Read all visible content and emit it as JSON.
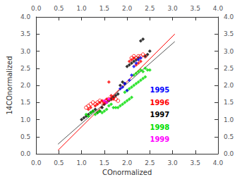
{
  "chart_data": {
    "type": "scatter",
    "x_label": "COnormalized",
    "y_label": "14COnormalized",
    "xlim": [
      0.0,
      4.0
    ],
    "ylim": [
      0.0,
      4.0
    ],
    "xticks": [
      {
        "value": 0.0,
        "label": "0.0"
      },
      0.5,
      {
        "value": 1.0,
        "label": "1.0"
      },
      1.5,
      {
        "value": 2.0,
        "label": "2.0"
      },
      2.5,
      {
        "value": 3.0,
        "label": "3.0"
      },
      3.5,
      {
        "value": 4.0,
        "label": "4.0"
      }
    ],
    "yticks": [
      {
        "value": 0.0,
        "label": "0.0"
      },
      0.5,
      {
        "value": 1.0,
        "label": "1.0"
      },
      1.5,
      {
        "value": 2.0,
        "label": "2.0"
      },
      2.5,
      {
        "value": 3.0,
        "label": "3.0"
      },
      3.5,
      {
        "value": 4.0,
        "label": "4.0"
      }
    ],
    "grid": false,
    "series": [
      {
        "type": "line",
        "color": "#555555",
        "x": [
          0.48,
          3.05
        ],
        "values": [
          0.28,
          3.28
        ]
      },
      {
        "type": "line",
        "color": "#ff0000",
        "x": [
          0.48,
          3.05
        ],
        "values": [
          0.1,
          3.5
        ]
      },
      {
        "type": "scatter",
        "marker": "diamond",
        "color": "#000000",
        "x": [
          1.0,
          1.05,
          1.1,
          1.15,
          1.2,
          1.25,
          1.3,
          1.35,
          1.4,
          1.45,
          1.5,
          1.55,
          1.6,
          1.65,
          1.7,
          1.75,
          1.8,
          1.85,
          1.9,
          1.95,
          2.0,
          2.05,
          2.1,
          2.15,
          2.2,
          2.25,
          2.3,
          2.35,
          2.4,
          2.45,
          2.5
        ],
        "values": [
          1.0,
          1.05,
          1.1,
          1.15,
          1.2,
          1.25,
          1.3,
          1.2,
          1.25,
          1.35,
          1.45,
          1.5,
          1.55,
          1.6,
          1.65,
          1.7,
          1.75,
          2.0,
          2.1,
          2.05,
          2.55,
          2.6,
          2.65,
          2.7,
          2.75,
          2.8,
          3.3,
          3.35,
          2.85,
          2.9,
          3.0
        ]
      },
      {
        "type": "scatter",
        "marker": "diamond",
        "color": "#00dd00",
        "x": [
          1.1,
          1.15,
          1.2,
          1.25,
          1.3,
          1.35,
          1.4,
          1.45,
          1.5,
          1.55,
          1.6,
          1.65,
          1.7,
          1.75,
          1.8,
          1.85,
          1.9,
          1.95,
          2.0,
          2.05,
          2.1,
          2.15,
          2.2,
          2.25,
          2.3,
          2.35,
          2.4,
          2.45,
          2.5,
          1.95,
          2.0,
          2.05,
          2.1,
          2.15,
          2.2,
          2.25,
          2.3,
          2.35,
          2.4
        ],
        "values": [
          1.15,
          1.1,
          1.2,
          1.25,
          1.15,
          1.2,
          1.25,
          1.2,
          1.25,
          1.3,
          1.4,
          1.45,
          1.35,
          1.35,
          1.35,
          1.4,
          1.45,
          1.5,
          1.55,
          1.6,
          1.65,
          2.3,
          2.35,
          2.4,
          2.45,
          2.4,
          2.5,
          2.45,
          2.45,
          1.8,
          1.85,
          1.9,
          1.95,
          2.0,
          2.05,
          2.1,
          2.15,
          2.2,
          2.25
        ]
      },
      {
        "type": "scatter",
        "marker": "open_circle",
        "color": "#ff0000",
        "x": [
          1.1,
          1.15,
          1.2,
          1.25,
          1.3,
          1.35,
          1.4,
          1.45,
          1.5,
          1.55,
          1.6,
          1.65,
          1.7,
          1.75,
          1.8,
          2.1,
          2.15,
          2.2,
          2.25,
          2.3,
          2.35,
          2.4
        ],
        "values": [
          1.35,
          1.4,
          1.45,
          1.5,
          1.45,
          1.5,
          1.55,
          1.5,
          1.5,
          1.55,
          1.6,
          1.6,
          1.65,
          1.6,
          1.55,
          2.8,
          2.85,
          2.8,
          2.85,
          2.85,
          2.9,
          2.85
        ]
      },
      {
        "type": "scatter",
        "marker": "diamond",
        "color": "#ff0000",
        "x": [
          1.15,
          1.2,
          1.3,
          1.35,
          1.4,
          1.45,
          1.5,
          1.55,
          1.6,
          1.65,
          2.05,
          2.1,
          2.15,
          2.2,
          2.25,
          2.3,
          1.7
        ],
        "values": [
          1.3,
          1.35,
          1.4,
          1.45,
          1.5,
          1.55,
          1.5,
          1.6,
          2.1,
          1.7,
          2.7,
          2.75,
          2.8,
          2.6,
          2.65,
          2.7,
          1.6
        ]
      },
      {
        "type": "scatter",
        "marker": "diamond",
        "color": "#0000ff",
        "x": [
          1.85,
          1.9,
          1.95,
          2.0,
          2.05,
          2.1,
          2.15,
          2.2,
          2.25,
          2.3
        ],
        "values": [
          1.9,
          1.95,
          2.05,
          1.85,
          2.15,
          2.3,
          2.55,
          2.65,
          2.75,
          2.8
        ]
      },
      {
        "type": "scatter",
        "marker": "diamond",
        "color": "#ff00ff",
        "x": [
          1.5,
          1.55,
          1.6
        ],
        "values": [
          1.55,
          1.5,
          1.6
        ]
      }
    ],
    "annotations": [
      {
        "text": "1995",
        "color": "#0000ff"
      },
      {
        "text": "1996",
        "color": "#ff0000"
      },
      {
        "text": "1997",
        "color": "#000000"
      },
      {
        "text": "1998",
        "color": "#00dd00"
      },
      {
        "text": "1999",
        "color": "#ff00ff"
      }
    ]
  }
}
